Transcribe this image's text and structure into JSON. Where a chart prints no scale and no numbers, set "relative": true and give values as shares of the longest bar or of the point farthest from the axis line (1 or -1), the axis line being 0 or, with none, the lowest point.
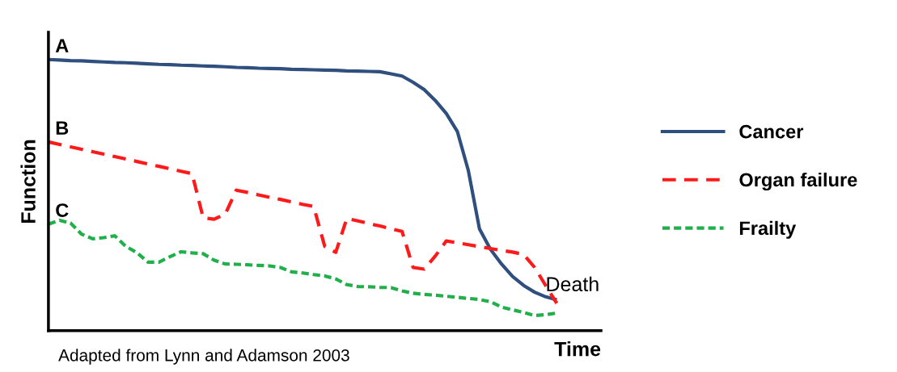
{
  "chart_data": {
    "type": "line",
    "relative": true,
    "xlabel": "Time",
    "ylabel": "Function",
    "legend": "right",
    "marker": "none",
    "categories": [
      null,
      null,
      null,
      null,
      null,
      null,
      null,
      null,
      null,
      null,
      null,
      null,
      null,
      null,
      null,
      null,
      null,
      null,
      null,
      null,
      null,
      null,
      null,
      null,
      null,
      null,
      null,
      null,
      null,
      null,
      null,
      null,
      null,
      null,
      null,
      null,
      null,
      null,
      null,
      null,
      null,
      null,
      null,
      null,
      null,
      null,
      null,
      null,
      null,
      null,
      null
    ],
    "series": [
      {
        "name": "Cancer",
        "color": "#2f4f7f",
        "line_style": "solid",
        "values": [
          1.0,
          0.998,
          0.996,
          0.995,
          0.993,
          0.991,
          0.989,
          0.988,
          0.986,
          0.984,
          0.982,
          0.981,
          0.979,
          0.978,
          0.976,
          0.975,
          0.973,
          0.971,
          0.97,
          0.968,
          0.967,
          0.966,
          0.964,
          0.963,
          0.962,
          0.961,
          0.96,
          0.958,
          0.957,
          0.956,
          0.955,
          0.947,
          0.939,
          0.916,
          0.889,
          0.849,
          0.801,
          0.735,
          0.59,
          0.376,
          0.3,
          0.246,
          0.2,
          0.167,
          0.142,
          0.125,
          0.114,
          null,
          null,
          null,
          null
        ]
      },
      {
        "name": "Organ failure",
        "color": "#ff1a1a",
        "line_style": "dashed",
        "values": [
          0.696,
          0.687,
          0.678,
          0.669,
          0.66,
          0.651,
          0.642,
          0.633,
          0.624,
          0.615,
          0.606,
          0.597,
          0.588,
          0.579,
          0.416,
          0.411,
          0.43,
          0.518,
          0.51,
          0.501,
          0.492,
          0.484,
          0.475,
          0.466,
          0.458,
          0.311,
          0.289,
          0.414,
          0.405,
          0.395,
          0.386,
          0.376,
          0.366,
          0.233,
          0.227,
          0.275,
          0.331,
          0.324,
          0.317,
          0.31,
          0.303,
          0.296,
          0.29,
          0.281,
          0.233,
          0.166,
          0.101,
          null,
          null,
          null,
          null
        ]
      },
      {
        "name": "Frailty",
        "color": "#1fb04a",
        "line_style": "dotted",
        "values": [
          0.393,
          0.407,
          0.397,
          0.356,
          0.339,
          0.343,
          0.35,
          0.311,
          0.288,
          0.253,
          0.253,
          0.273,
          0.291,
          0.287,
          0.284,
          0.26,
          0.246,
          0.245,
          0.243,
          0.241,
          0.239,
          0.233,
          0.217,
          0.213,
          0.207,
          0.202,
          0.191,
          0.17,
          0.163,
          0.162,
          0.16,
          0.159,
          0.147,
          0.138,
          0.134,
          0.131,
          0.127,
          0.123,
          0.119,
          0.115,
          0.107,
          0.087,
          0.077,
          0.067,
          0.056,
          0.059,
          0.065,
          null,
          null,
          null,
          null
        ]
      }
    ],
    "annotations": [
      "A",
      "B",
      "C",
      "Death",
      "Adapted from Lynn and Adamson 2003"
    ]
  }
}
